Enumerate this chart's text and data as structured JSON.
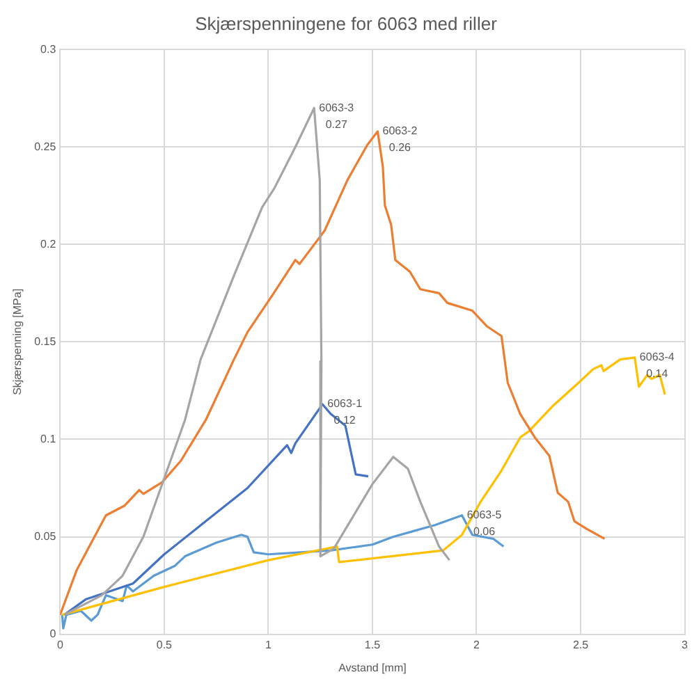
{
  "chart_data": {
    "type": "line",
    "title": "Skjærspenningene for 6063 med riller",
    "xlabel": "Avstand [mm]",
    "ylabel": "Skjærspenning [MPa]",
    "xlim": [
      0,
      3
    ],
    "xticks": [
      0,
      0.5,
      1,
      1.5,
      2,
      2.5,
      3
    ],
    "ylim": [
      0,
      0.3
    ],
    "yticks": [
      0,
      0.05,
      0.1,
      0.15,
      0.2,
      0.25,
      0.3
    ],
    "grid": true,
    "legend": false,
    "marker": "none",
    "line_style": "solid",
    "series": [
      {
        "color": "#a5a5a5",
        "x": [
          0.02,
          0.2,
          0.3,
          0.4,
          0.5,
          0.6,
          0.675,
          0.835,
          0.97,
          1.03,
          1.13,
          1.22,
          1.247,
          1.255,
          1.25,
          1.315,
          1.5,
          1.6,
          1.67,
          1.73,
          1.82,
          1.87
        ],
        "values": [
          0.01,
          0.02,
          0.03,
          0.05,
          0.08,
          0.11,
          0.141,
          0.184,
          0.219,
          0.229,
          0.25,
          0.27,
          0.233,
          0.14,
          0.04,
          0.044,
          0.077,
          0.091,
          0.085,
          0.068,
          0.045,
          0.038
        ]
      },
      {
        "color": "#ed7d31",
        "x": [
          0,
          0.08,
          0.22,
          0.31,
          0.38,
          0.4,
          0.49,
          0.58,
          0.7,
          0.835,
          0.9,
          1.02,
          1.13,
          1.15,
          1.27,
          1.38,
          1.475,
          1.525,
          1.55,
          1.56,
          1.59,
          1.61,
          1.68,
          1.73,
          1.82,
          1.86,
          1.98,
          2.05,
          2.12,
          2.15,
          2.21,
          2.28,
          2.35,
          2.39,
          2.44,
          2.47,
          2.53,
          2.615
        ],
        "values": [
          0.01,
          0.033,
          0.061,
          0.066,
          0.074,
          0.072,
          0.078,
          0.089,
          0.11,
          0.141,
          0.155,
          0.174,
          0.192,
          0.19,
          0.207,
          0.233,
          0.251,
          0.258,
          0.24,
          0.22,
          0.21,
          0.192,
          0.186,
          0.177,
          0.175,
          0.17,
          0.166,
          0.158,
          0.153,
          0.129,
          0.113,
          0.101,
          0.0915,
          0.0726,
          0.068,
          0.058,
          0.054,
          0.049
        ]
      },
      {
        "color": "#ffc000",
        "x": [
          0.01,
          0.49,
          1,
          1.33,
          1.34,
          1.84,
          1.93,
          2.02,
          2.12,
          2.21,
          2.25,
          2.37,
          2.49,
          2.56,
          2.6,
          2.61,
          2.69,
          2.76,
          2.78,
          2.82,
          2.84,
          2.88,
          2.905
        ],
        "values": [
          0.01,
          0.024,
          0.038,
          0.045,
          0.037,
          0.043,
          0.051,
          0.068,
          0.084,
          0.101,
          0.104,
          0.1175,
          0.129,
          0.136,
          0.138,
          0.135,
          0.141,
          0.142,
          0.127,
          0.133,
          0.131,
          0.133,
          0.123
        ]
      },
      {
        "color": "#4472c4",
        "x": [
          0.02,
          0.125,
          0.35,
          0.5,
          0.7,
          0.9,
          1.09,
          1.11,
          1.13,
          1.26,
          1.3,
          1.37,
          1.42,
          1.48
        ],
        "values": [
          0.01,
          0.018,
          0.026,
          0.041,
          0.058,
          0.075,
          0.097,
          0.093,
          0.098,
          0.118,
          0.113,
          0.107,
          0.082,
          0.081
        ]
      },
      {
        "color": "#5b9bd5",
        "x": [
          0.01,
          0.015,
          0.03,
          0.1,
          0.15,
          0.18,
          0.22,
          0.3,
          0.32,
          0.35,
          0.45,
          0.55,
          0.6,
          0.75,
          0.87,
          0.9,
          0.93,
          1,
          1.3,
          1.5,
          1.6,
          1.7,
          1.8,
          1.93,
          1.98,
          2.08,
          2.13
        ],
        "values": [
          0.01,
          0.003,
          0.01,
          0.012,
          0.007,
          0.01,
          0.02,
          0.017,
          0.025,
          0.022,
          0.03,
          0.035,
          0.04,
          0.047,
          0.051,
          0.05,
          0.042,
          0.041,
          0.043,
          0.046,
          0.05,
          0.053,
          0.056,
          0.061,
          0.051,
          0.049,
          0.045
        ]
      }
    ],
    "annotations": [
      {
        "text": "6063-3\n0.27",
        "x": 1.22,
        "y": 0.27
      },
      {
        "text": "6063-2\n0.26",
        "x": 1.525,
        "y": 0.258
      },
      {
        "text": "6063-1\n0.12",
        "x": 1.26,
        "y": 0.118
      },
      {
        "text": "6063-4\n0.14",
        "x": 2.76,
        "y": 0.142
      },
      {
        "text": "6063-5\n0.06",
        "x": 1.93,
        "y": 0.061
      }
    ]
  }
}
